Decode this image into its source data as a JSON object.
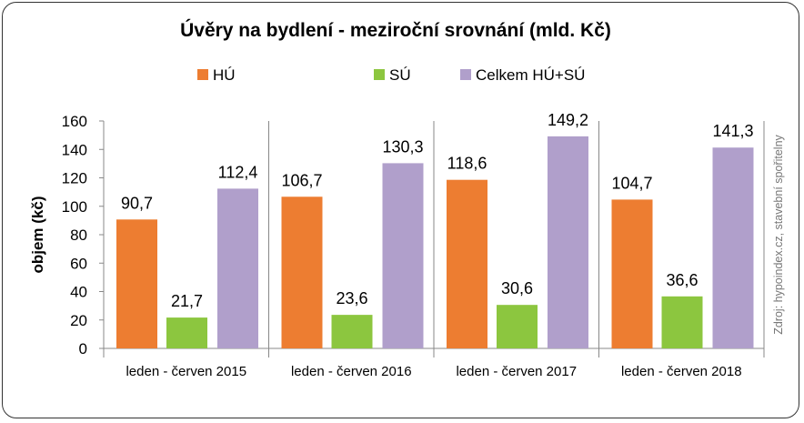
{
  "chart_data": {
    "type": "bar",
    "title": "Úvěry na bydlení - meziroční srovnání (mld. Kč)",
    "xlabel": "",
    "ylabel": "objem (kč)",
    "ylim": [
      0,
      160
    ],
    "yticks": [
      0,
      20,
      40,
      60,
      80,
      100,
      120,
      140,
      160
    ],
    "grid": false,
    "legend": "top",
    "categories": [
      "leden - červen 2015",
      "leden - červen 2016",
      "leden - červen 2017",
      "leden - červen 2018"
    ],
    "series": [
      {
        "name": "HÚ",
        "color": "#ed7d31",
        "values": [
          90.7,
          106.7,
          118.6,
          104.7
        ],
        "labels": [
          "90,7",
          "106,7",
          "118,6",
          "104,7"
        ]
      },
      {
        "name": "SÚ",
        "color": "#8cc63f",
        "values": [
          21.7,
          23.6,
          30.6,
          36.6
        ],
        "labels": [
          "21,7",
          "23,6",
          "30,6",
          "36,6"
        ]
      },
      {
        "name": "Celkem HÚ+SÚ",
        "color": "#b09fcb",
        "values": [
          112.4,
          130.3,
          149.2,
          141.3
        ],
        "labels": [
          "112,4",
          "130,3",
          "149,2",
          "141,3"
        ]
      }
    ],
    "source_note": "Zdroj: hypoindex.cz, stavební spořitelny"
  }
}
